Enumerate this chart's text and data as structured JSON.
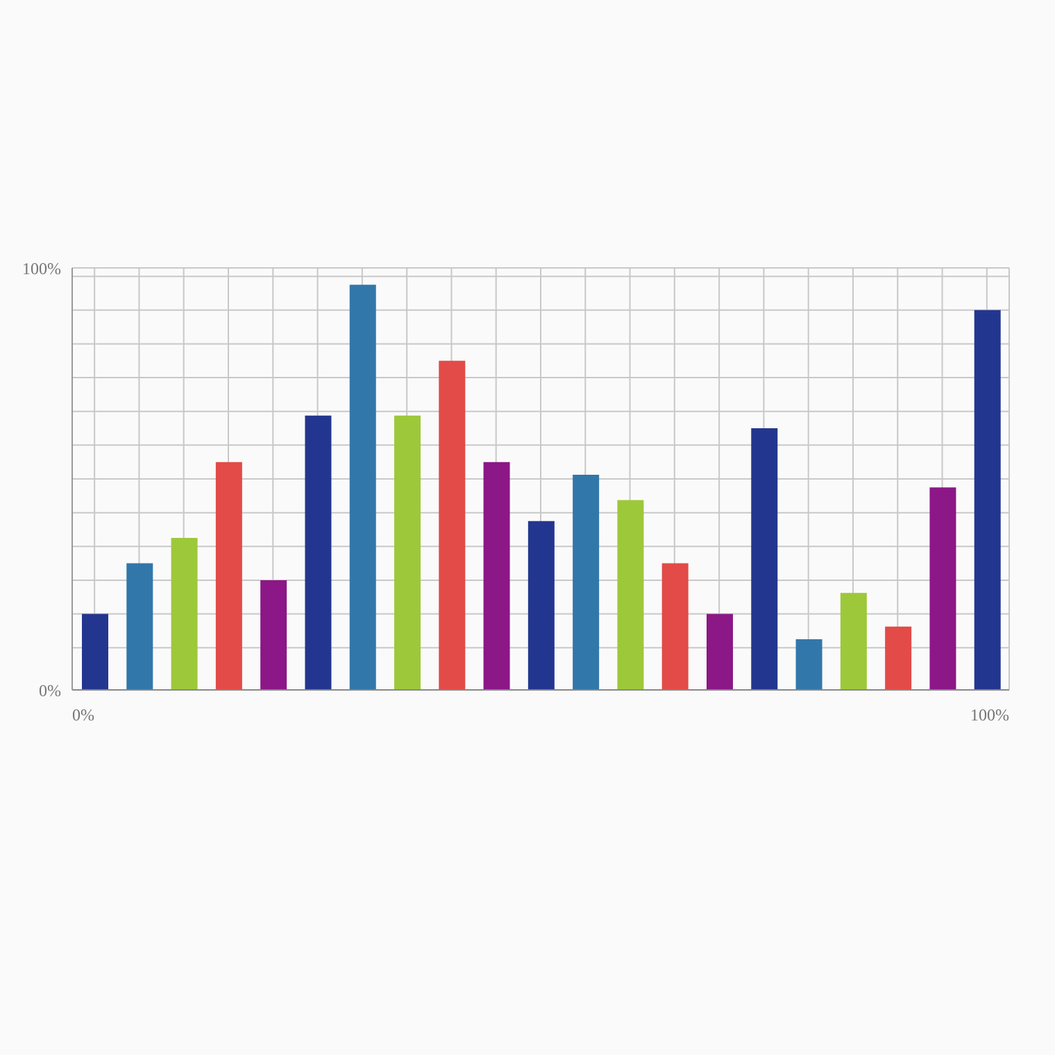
{
  "chart_data": {
    "type": "bar",
    "categories": [
      null,
      null,
      null,
      null,
      null,
      null,
      null,
      null,
      null,
      null,
      null,
      null,
      null,
      null,
      null,
      null,
      null,
      null,
      null,
      null,
      null
    ],
    "values": [
      18,
      30,
      36,
      54,
      26,
      65,
      96,
      65,
      78,
      54,
      40,
      51,
      45,
      30,
      18,
      62,
      12,
      23,
      15,
      48,
      90
    ],
    "colors": [
      "#23368f",
      "#3277aa",
      "#9dc83a",
      "#e24b47",
      "#8c1787",
      "#23368f",
      "#3277aa",
      "#9dc83a",
      "#e24b47",
      "#8c1787",
      "#23368f",
      "#3277aa",
      "#9dc83a",
      "#e24b47",
      "#8c1787",
      "#23368f",
      "#3277aa",
      "#9dc83a",
      "#e24b47",
      "#8c1787",
      "#23368f"
    ],
    "ylim": [
      0,
      100
    ],
    "yticks": [
      {
        "value": 0,
        "label": "0%"
      },
      {
        "value": 10,
        "label": null
      },
      {
        "value": 18,
        "label": null
      },
      {
        "value": 26,
        "label": null
      },
      {
        "value": 34,
        "label": null
      },
      {
        "value": 42,
        "label": null
      },
      {
        "value": 50,
        "label": null
      },
      {
        "value": 58,
        "label": null
      },
      {
        "value": 66,
        "label": null
      },
      {
        "value": 74,
        "label": null
      },
      {
        "value": 82,
        "label": null
      },
      {
        "value": 90,
        "label": null
      },
      {
        "value": 98,
        "label": null
      },
      {
        "value": 100,
        "label": "100%"
      }
    ],
    "grid": true,
    "annotations": [
      "0%",
      "100%"
    ]
  }
}
